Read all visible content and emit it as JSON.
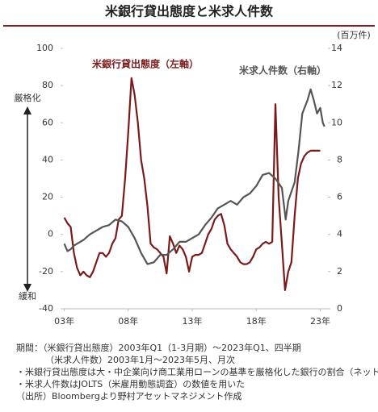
{
  "chart_data": {
    "type": "line",
    "title": "米銀行貸出態度と米求人件数",
    "y2_label": "(百万件)",
    "annotations": [
      "厳格化",
      "緩和"
    ],
    "xlim": [
      2002.9,
      2023.6
    ],
    "xticks": [
      {
        "value": 2003,
        "label": "03年"
      },
      {
        "value": 2008,
        "label": "08年"
      },
      {
        "value": 2013,
        "label": "13年"
      },
      {
        "value": 2018,
        "label": "18年"
      },
      {
        "value": 2023,
        "label": "23年"
      }
    ],
    "ylim": [
      -40,
      100
    ],
    "yticks": [
      -40,
      -20,
      0,
      20,
      40,
      60,
      80,
      100
    ],
    "y2lim": [
      0,
      14
    ],
    "y2ticks": [
      0,
      2,
      4,
      6,
      8,
      10,
      12,
      14
    ],
    "series": [
      {
        "name": "米銀行貸出態度（左軸）",
        "color": "#7b1a1a",
        "axis": "y",
        "x": [
          2003.0,
          2003.25,
          2003.5,
          2003.75,
          2004.0,
          2004.25,
          2004.5,
          2004.75,
          2005.0,
          2005.25,
          2005.5,
          2005.75,
          2006.0,
          2006.25,
          2006.5,
          2006.75,
          2007.0,
          2007.25,
          2007.5,
          2007.75,
          2008.0,
          2008.25,
          2008.5,
          2008.75,
          2009.0,
          2009.25,
          2009.5,
          2009.75,
          2010.0,
          2010.25,
          2010.5,
          2010.75,
          2011.0,
          2011.25,
          2011.5,
          2011.75,
          2012.0,
          2012.25,
          2012.5,
          2012.75,
          2013.0,
          2013.25,
          2013.5,
          2013.75,
          2014.0,
          2014.25,
          2014.5,
          2014.75,
          2015.0,
          2015.25,
          2015.5,
          2015.75,
          2016.0,
          2016.25,
          2016.5,
          2016.75,
          2017.0,
          2017.25,
          2017.5,
          2017.75,
          2018.0,
          2018.25,
          2018.5,
          2018.75,
          2019.0,
          2019.25,
          2019.5,
          2019.75,
          2020.0,
          2020.25,
          2020.5,
          2020.75,
          2021.0,
          2021.25,
          2021.5,
          2021.75,
          2022.0,
          2022.25,
          2022.5,
          2022.75,
          2023.0
        ],
        "values": [
          9,
          6,
          4,
          -10,
          -18,
          -22,
          -20,
          -22,
          -23,
          -20,
          -15,
          -10,
          -10,
          -12,
          -10,
          -5,
          -2,
          8,
          10,
          30,
          55,
          84,
          75,
          60,
          40,
          30,
          15,
          -5,
          -7,
          -8,
          -10,
          -12,
          -21,
          -1,
          -5,
          -10,
          -6,
          -8,
          -12,
          -20,
          -12,
          -11,
          -11,
          -10,
          -5,
          0,
          3,
          8,
          10,
          11,
          5,
          -5,
          -8,
          -10,
          -12,
          -15,
          -16,
          -16,
          -15,
          -12,
          -8,
          -7,
          -5,
          -4,
          -5,
          -4,
          70,
          20,
          -5,
          -30,
          -20,
          -15,
          10,
          30,
          38,
          42,
          44,
          45,
          45,
          45,
          45
        ]
      },
      {
        "name": "米求人件数（右軸）",
        "color": "#555555",
        "axis": "y2",
        "x": [
          2003.0,
          2003.25,
          2003.5,
          2003.75,
          2004.0,
          2004.5,
          2005.0,
          2005.5,
          2006.0,
          2006.5,
          2007.0,
          2007.5,
          2008.0,
          2008.5,
          2009.0,
          2009.5,
          2010.0,
          2010.5,
          2011.0,
          2011.5,
          2012.0,
          2012.5,
          2013.0,
          2013.5,
          2014.0,
          2014.5,
          2015.0,
          2015.5,
          2016.0,
          2016.5,
          2017.0,
          2017.5,
          2018.0,
          2018.5,
          2019.0,
          2019.5,
          2020.0,
          2020.3,
          2020.5,
          2020.75,
          2021.0,
          2021.3,
          2021.6,
          2022.0,
          2022.25,
          2022.5,
          2022.75,
          2023.0,
          2023.2,
          2023.33
        ],
        "values": [
          3.5,
          3.1,
          3.2,
          3.4,
          3.5,
          3.7,
          4.0,
          4.2,
          4.4,
          4.5,
          4.8,
          4.7,
          4.4,
          3.8,
          3.0,
          2.4,
          2.5,
          2.9,
          2.9,
          3.2,
          3.6,
          3.6,
          3.8,
          4.0,
          4.5,
          4.9,
          5.4,
          5.6,
          5.8,
          5.6,
          6.0,
          6.2,
          6.6,
          7.2,
          7.3,
          7.0,
          6.5,
          4.8,
          5.8,
          6.3,
          6.8,
          8.5,
          10.5,
          11.2,
          11.8,
          11.2,
          10.5,
          10.8,
          10.0,
          9.8
        ]
      }
    ],
    "notes": [
      "期間：（米銀行貸出態度）2003年Q1（1-3月期）～2023年Q1、四半期",
      "（米求人件数）2003年1月～2023年5月、月次",
      "・米銀行貸出態度は大・中企業向け商工業用ローンの基準を厳格化した銀行の割合（ネット）",
      "・米求人件数はJOLTS（米雇用動態調査）の数値を用いた",
      "（出所）Bloombergより野村アセットマネジメント作成"
    ]
  }
}
